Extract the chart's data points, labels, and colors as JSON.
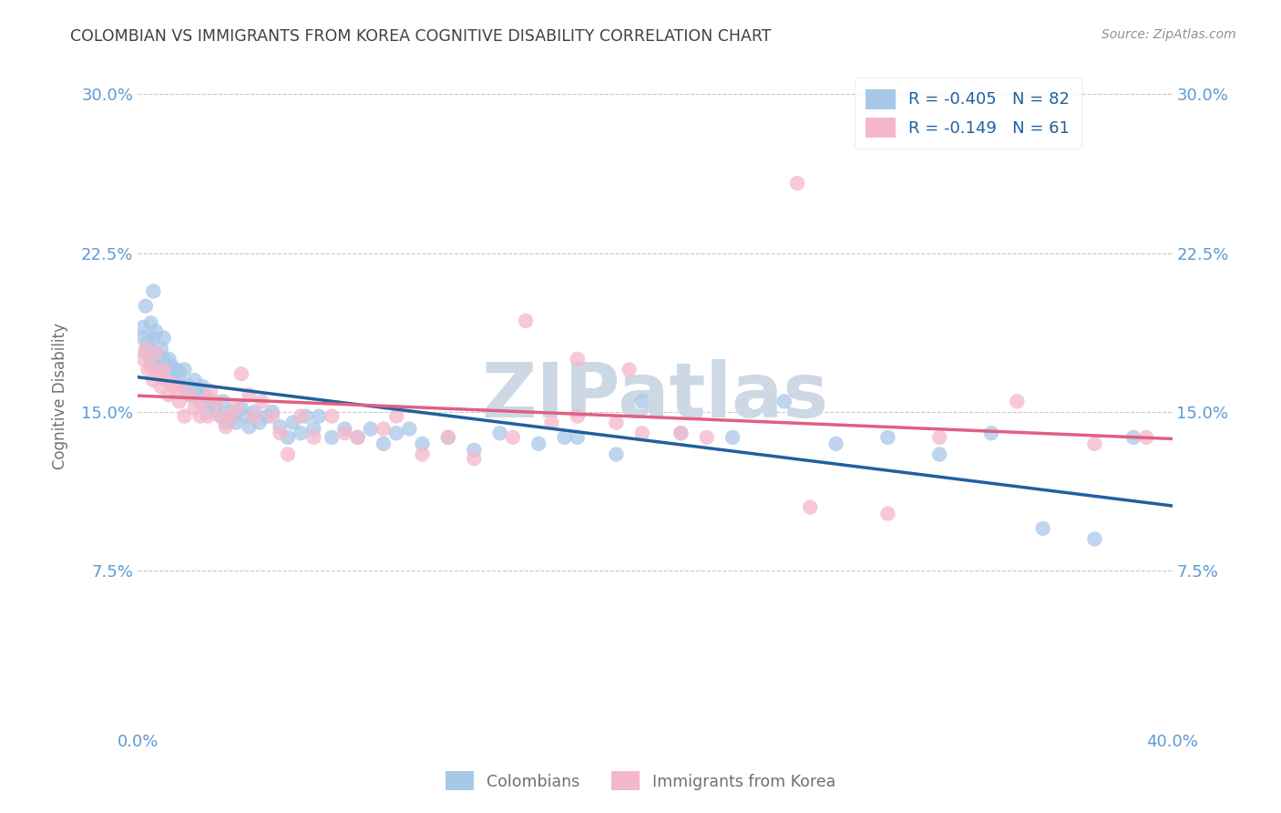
{
  "title": "COLOMBIAN VS IMMIGRANTS FROM KOREA COGNITIVE DISABILITY CORRELATION CHART",
  "source": "Source: ZipAtlas.com",
  "ylabel": "Cognitive Disability",
  "xlim": [
    0.0,
    0.4
  ],
  "ylim": [
    0.0,
    0.315
  ],
  "yticks": [
    0.0,
    0.075,
    0.15,
    0.225,
    0.3
  ],
  "ytick_labels": [
    "",
    "7.5%",
    "15.0%",
    "22.5%",
    "30.0%"
  ],
  "xticks": [
    0.0,
    0.1,
    0.2,
    0.3,
    0.4
  ],
  "xtick_labels": [
    "0.0%",
    "",
    "",
    "",
    "40.0%"
  ],
  "colombian_R": -0.405,
  "colombian_N": 82,
  "korea_R": -0.149,
  "korea_N": 61,
  "blue_color": "#a8c8e8",
  "pink_color": "#f5b8cb",
  "blue_line_color": "#2060a0",
  "pink_line_color": "#e06080",
  "legend_text_color": "#2060a0",
  "title_color": "#404040",
  "source_color": "#909090",
  "axis_label_color": "#707070",
  "tick_color": "#5b9bd5",
  "grid_color": "#c8c8c8",
  "background_color": "#ffffff",
  "watermark_text": "ZIPatlas",
  "watermark_color": "#ccd8e4",
  "colombian_x": [
    0.002,
    0.002,
    0.003,
    0.004,
    0.004,
    0.005,
    0.005,
    0.006,
    0.006,
    0.007,
    0.007,
    0.008,
    0.009,
    0.01,
    0.01,
    0.011,
    0.012,
    0.012,
    0.013,
    0.014,
    0.015,
    0.016,
    0.017,
    0.018,
    0.019,
    0.02,
    0.022,
    0.023,
    0.024,
    0.025,
    0.026,
    0.027,
    0.028,
    0.03,
    0.032,
    0.033,
    0.034,
    0.036,
    0.037,
    0.038,
    0.04,
    0.042,
    0.043,
    0.045,
    0.047,
    0.05,
    0.052,
    0.055,
    0.058,
    0.06,
    0.063,
    0.065,
    0.068,
    0.07,
    0.075,
    0.08,
    0.085,
    0.09,
    0.095,
    0.1,
    0.105,
    0.11,
    0.12,
    0.13,
    0.14,
    0.155,
    0.165,
    0.17,
    0.185,
    0.195,
    0.21,
    0.23,
    0.25,
    0.27,
    0.29,
    0.31,
    0.33,
    0.35,
    0.37,
    0.385,
    0.003,
    0.006
  ],
  "colombian_y": [
    0.185,
    0.19,
    0.178,
    0.18,
    0.183,
    0.175,
    0.192,
    0.173,
    0.185,
    0.178,
    0.188,
    0.172,
    0.18,
    0.175,
    0.185,
    0.17,
    0.168,
    0.175,
    0.172,
    0.165,
    0.17,
    0.168,
    0.162,
    0.17,
    0.163,
    0.158,
    0.165,
    0.16,
    0.155,
    0.162,
    0.158,
    0.15,
    0.155,
    0.152,
    0.148,
    0.155,
    0.145,
    0.15,
    0.148,
    0.145,
    0.152,
    0.148,
    0.143,
    0.15,
    0.145,
    0.148,
    0.15,
    0.143,
    0.138,
    0.145,
    0.14,
    0.148,
    0.142,
    0.148,
    0.138,
    0.142,
    0.138,
    0.142,
    0.135,
    0.14,
    0.142,
    0.135,
    0.138,
    0.132,
    0.14,
    0.135,
    0.138,
    0.138,
    0.13,
    0.155,
    0.14,
    0.138,
    0.155,
    0.135,
    0.138,
    0.13,
    0.14,
    0.095,
    0.09,
    0.138,
    0.2,
    0.207
  ],
  "korea_x": [
    0.002,
    0.003,
    0.004,
    0.005,
    0.006,
    0.007,
    0.008,
    0.009,
    0.01,
    0.011,
    0.012,
    0.013,
    0.015,
    0.016,
    0.017,
    0.018,
    0.02,
    0.022,
    0.024,
    0.025,
    0.027,
    0.028,
    0.03,
    0.032,
    0.034,
    0.036,
    0.038,
    0.04,
    0.043,
    0.045,
    0.048,
    0.052,
    0.055,
    0.058,
    0.063,
    0.068,
    0.075,
    0.08,
    0.085,
    0.095,
    0.1,
    0.11,
    0.12,
    0.13,
    0.145,
    0.16,
    0.17,
    0.185,
    0.195,
    0.21,
    0.15,
    0.17,
    0.19,
    0.22,
    0.26,
    0.29,
    0.31,
    0.34,
    0.37,
    0.39,
    0.255
  ],
  "korea_y": [
    0.175,
    0.18,
    0.17,
    0.172,
    0.165,
    0.178,
    0.168,
    0.162,
    0.17,
    0.165,
    0.158,
    0.163,
    0.16,
    0.155,
    0.162,
    0.148,
    0.158,
    0.152,
    0.148,
    0.155,
    0.148,
    0.16,
    0.155,
    0.148,
    0.143,
    0.148,
    0.152,
    0.168,
    0.158,
    0.148,
    0.155,
    0.148,
    0.14,
    0.13,
    0.148,
    0.138,
    0.148,
    0.14,
    0.138,
    0.142,
    0.148,
    0.13,
    0.138,
    0.128,
    0.138,
    0.145,
    0.148,
    0.145,
    0.14,
    0.14,
    0.193,
    0.175,
    0.17,
    0.138,
    0.105,
    0.102,
    0.138,
    0.155,
    0.135,
    0.138,
    0.258
  ]
}
